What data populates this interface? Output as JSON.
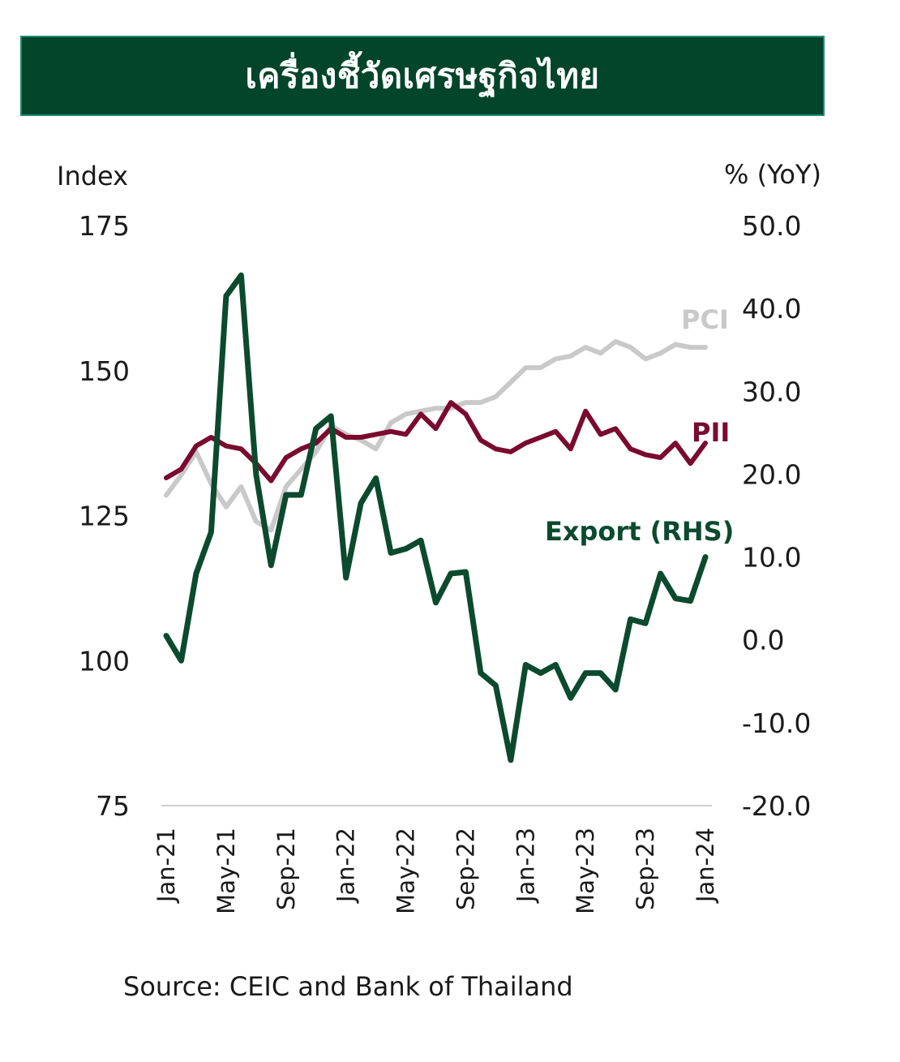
{
  "header": {
    "title": "เครื่องชี้วัดเศรษฐกิจไทย"
  },
  "source": "Source: CEIC and Bank of Thailand",
  "colors": {
    "header_bg": "#03452a",
    "header_border": "#1f8a72",
    "pci": "#c9c9c9",
    "pii": "#7a0a2e",
    "export": "#0b4a2e"
  },
  "chart_data": {
    "type": "line",
    "y_left": {
      "label": "Index",
      "range": [
        75,
        175
      ],
      "ticks": [
        "175",
        "150",
        "125",
        "100",
        "75"
      ]
    },
    "y_right": {
      "label": "% (YoY)",
      "range": [
        -20,
        50
      ],
      "ticks": [
        "50.0",
        "40.0",
        "30.0",
        "20.0",
        "10.0",
        "0.0",
        "-10.0",
        "-20.0"
      ]
    },
    "x_ticks": [
      "Jan-21",
      "May-21",
      "Sep-21",
      "Jan-22",
      "May-22",
      "Sep-22",
      "Jan-23",
      "May-23",
      "Sep-23",
      "Jan-24"
    ],
    "x": [
      "Jan-21",
      "Feb-21",
      "Mar-21",
      "Apr-21",
      "May-21",
      "Jun-21",
      "Jul-21",
      "Aug-21",
      "Sep-21",
      "Oct-21",
      "Nov-21",
      "Dec-21",
      "Jan-22",
      "Feb-22",
      "Mar-22",
      "Apr-22",
      "May-22",
      "Jun-22",
      "Jul-22",
      "Aug-22",
      "Sep-22",
      "Oct-22",
      "Nov-22",
      "Dec-22",
      "Jan-23",
      "Feb-23",
      "Mar-23",
      "Apr-23",
      "May-23",
      "Jun-23",
      "Jul-23",
      "Aug-23",
      "Sep-23",
      "Oct-23",
      "Nov-23",
      "Dec-23",
      "Jan-24"
    ],
    "grid": false,
    "series": [
      {
        "name": "PCI",
        "axis": "left",
        "color": "#c9c9c9",
        "values": [
          128.5,
          132,
          136,
          130.5,
          126.5,
          130,
          124,
          122.5,
          130,
          133,
          136,
          140.5,
          139,
          138,
          136.5,
          141,
          142.5,
          143,
          143.5,
          143.5,
          144.5,
          144.5,
          145.5,
          148,
          150.5,
          150.5,
          152,
          152.5,
          154,
          153,
          155,
          154,
          152,
          153,
          154.5,
          154,
          154
        ]
      },
      {
        "name": "PII",
        "axis": "left",
        "color": "#7a0a2e",
        "values": [
          131.5,
          133,
          137,
          138.5,
          137,
          136.5,
          134,
          131,
          135,
          136.5,
          137.5,
          140,
          138.5,
          138.5,
          139,
          139.5,
          139,
          142.5,
          140,
          144.5,
          142.5,
          138,
          136.5,
          136,
          137.5,
          138.5,
          139.5,
          136.5,
          143,
          139,
          140,
          136.5,
          135.5,
          135,
          137.5,
          134,
          137.5
        ]
      },
      {
        "name": "Export (RHS)",
        "axis": "right",
        "color": "#0b4a2e",
        "values": [
          0.5,
          -2.5,
          8,
          13,
          41.5,
          44,
          20,
          9,
          17.5,
          17.5,
          25.5,
          27,
          7.5,
          16.5,
          19.5,
          10.5,
          11,
          12,
          4.5,
          8,
          8.2,
          -4,
          -5.5,
          -14.5,
          -3,
          -4,
          -3,
          -7,
          -4,
          -4,
          -6,
          2.5,
          2,
          8,
          5,
          4.7,
          10
        ]
      }
    ],
    "series_labels": [
      "PCI",
      "PII",
      "Export (RHS)"
    ]
  }
}
